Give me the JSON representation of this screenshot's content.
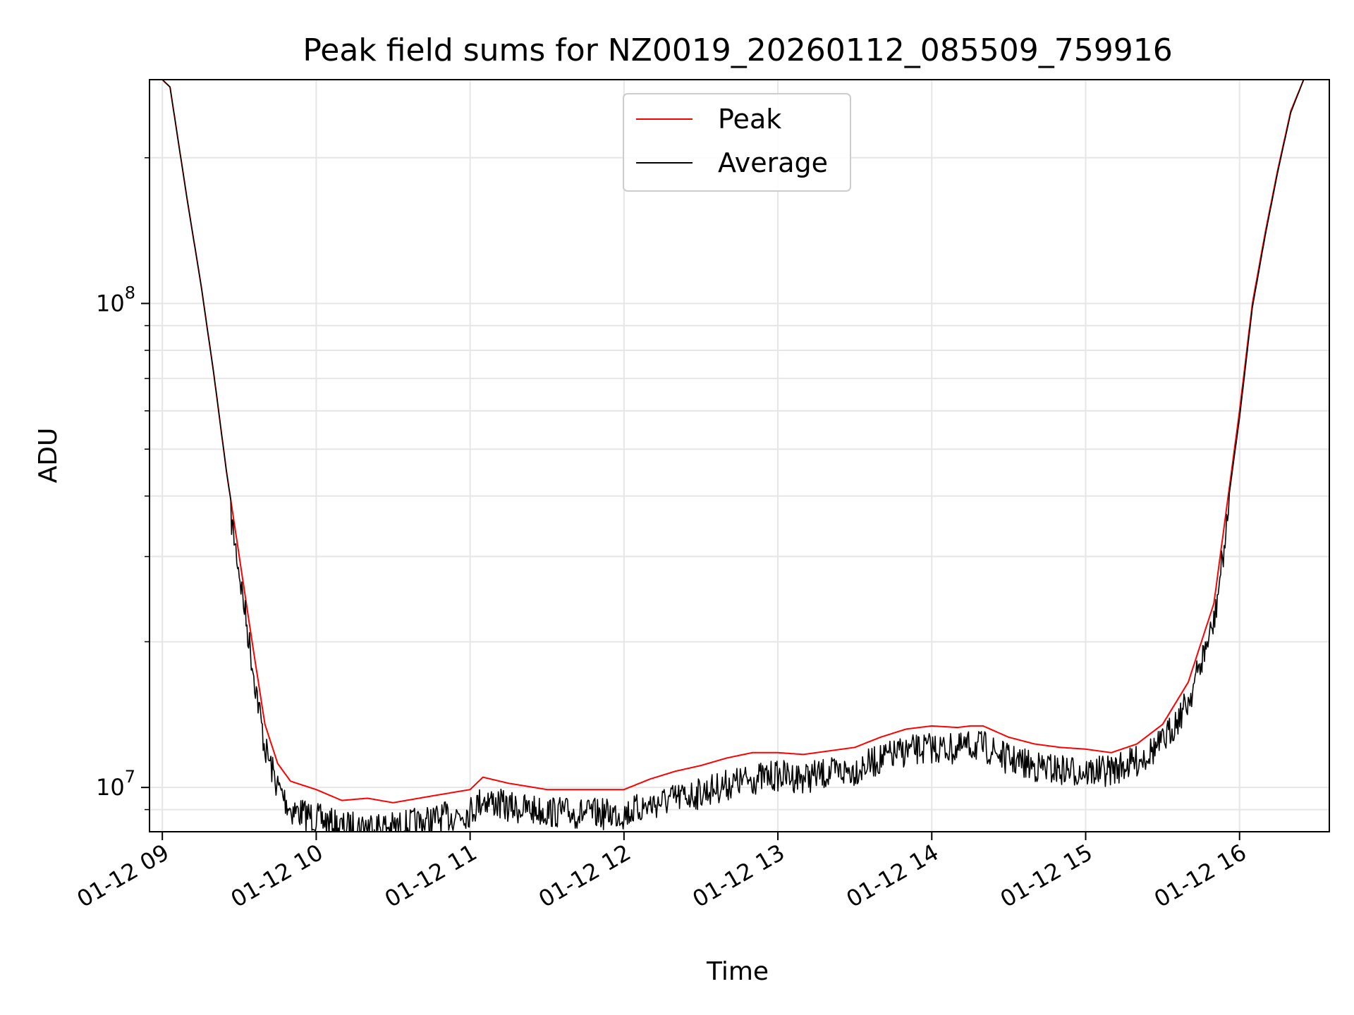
{
  "chart_data": {
    "type": "line",
    "title": "Peak field sums for NZ0019_20260112_085509_759916",
    "xlabel": "Time",
    "ylabel": "ADU",
    "y_scale": "log",
    "grid": true,
    "legend_position": "upper center",
    "xlim": [
      "01-12 08:55",
      "01-12 16:35"
    ],
    "ylim": [
      8100000,
      290000000
    ],
    "x_ticks": [
      "01-12 09",
      "01-12 10",
      "01-12 11",
      "01-12 12",
      "01-12 13",
      "01-12 14",
      "01-12 15",
      "01-12 16"
    ],
    "y_ticks": [
      {
        "value": 10000000,
        "base": "10",
        "exp": "7"
      },
      {
        "value": 100000000,
        "base": "10",
        "exp": "8"
      }
    ],
    "series": [
      {
        "name": "Peak",
        "color": "#ff0000",
        "x": [
          "01-12 08:55",
          "01-12 09:00",
          "01-12 09:03",
          "01-12 09:06",
          "01-12 09:10",
          "01-12 09:15",
          "01-12 09:20",
          "01-12 09:25",
          "01-12 09:30",
          "01-12 09:35",
          "01-12 09:40",
          "01-12 09:45",
          "01-12 09:50",
          "01-12 10:00",
          "01-12 10:10",
          "01-12 10:20",
          "01-12 10:30",
          "01-12 10:45",
          "01-12 11:00",
          "01-12 11:05",
          "01-12 11:15",
          "01-12 11:30",
          "01-12 11:45",
          "01-12 12:00",
          "01-12 12:10",
          "01-12 12:20",
          "01-12 12:30",
          "01-12 12:40",
          "01-12 12:50",
          "01-12 13:00",
          "01-12 13:10",
          "01-12 13:20",
          "01-12 13:30",
          "01-12 13:40",
          "01-12 13:50",
          "01-12 14:00",
          "01-12 14:10",
          "01-12 14:15",
          "01-12 14:20",
          "01-12 14:30",
          "01-12 14:40",
          "01-12 14:50",
          "01-12 15:00",
          "01-12 15:05",
          "01-12 15:10",
          "01-12 15:20",
          "01-12 15:30",
          "01-12 15:40",
          "01-12 15:50",
          "01-12 16:00",
          "01-12 16:05",
          "01-12 16:10",
          "01-12 16:15",
          "01-12 16:20",
          "01-12 16:25",
          "01-12 16:30",
          "01-12 16:35"
        ],
        "values": [
          290000000,
          290000000,
          280000000,
          220000000,
          160000000,
          110000000,
          72000000,
          45000000,
          30000000,
          20000000,
          13500000,
          11200000,
          10300000,
          9900000,
          9400000,
          9500000,
          9300000,
          9600000,
          9900000,
          10500000,
          10200000,
          9900000,
          9900000,
          9900000,
          10400000,
          10800000,
          11100000,
          11500000,
          11800000,
          11800000,
          11700000,
          11900000,
          12100000,
          12700000,
          13200000,
          13400000,
          13300000,
          13400000,
          13400000,
          12700000,
          12300000,
          12100000,
          12000000,
          11900000,
          11800000,
          12300000,
          13500000,
          16500000,
          24000000,
          60000000,
          100000000,
          140000000,
          190000000,
          250000000,
          290000000,
          290000000,
          290000000
        ]
      },
      {
        "name": "Average",
        "color": "#000000",
        "x": [
          "01-12 08:55",
          "01-12 09:00",
          "01-12 09:03",
          "01-12 09:06",
          "01-12 09:10",
          "01-12 09:15",
          "01-12 09:20",
          "01-12 09:25",
          "01-12 09:30",
          "01-12 09:35",
          "01-12 09:40",
          "01-12 09:45",
          "01-12 09:50",
          "01-12 10:00",
          "01-12 10:10",
          "01-12 10:20",
          "01-12 10:30",
          "01-12 10:45",
          "01-12 11:00",
          "01-12 11:05",
          "01-12 11:15",
          "01-12 11:30",
          "01-12 11:45",
          "01-12 12:00",
          "01-12 12:10",
          "01-12 12:20",
          "01-12 12:30",
          "01-12 12:40",
          "01-12 12:50",
          "01-12 13:00",
          "01-12 13:10",
          "01-12 13:20",
          "01-12 13:30",
          "01-12 13:40",
          "01-12 13:50",
          "01-12 14:00",
          "01-12 14:10",
          "01-12 14:15",
          "01-12 14:20",
          "01-12 14:30",
          "01-12 14:40",
          "01-12 14:50",
          "01-12 15:00",
          "01-12 15:05",
          "01-12 15:10",
          "01-12 15:20",
          "01-12 15:30",
          "01-12 15:40",
          "01-12 15:50",
          "01-12 16:00",
          "01-12 16:05",
          "01-12 16:10",
          "01-12 16:15",
          "01-12 16:20",
          "01-12 16:25",
          "01-12 16:30",
          "01-12 16:35"
        ],
        "values": [
          290000000,
          290000000,
          280000000,
          220000000,
          160000000,
          110000000,
          72000000,
          45000000,
          30000000,
          19500000,
          13000000,
          10800000,
          9700000,
          9300000,
          8900000,
          9000000,
          8900000,
          9200000,
          9600000,
          10200000,
          9800000,
          9600000,
          9500000,
          9500000,
          9900000,
          10200000,
          10500000,
          10900000,
          11200000,
          11400000,
          11300000,
          11500000,
          11700000,
          12300000,
          12800000,
          13000000,
          12900000,
          13100000,
          13100000,
          12300000,
          11900000,
          11700000,
          11600000,
          11600000,
          11700000,
          12200000,
          13300000,
          16200000,
          23500000,
          58000000,
          98000000,
          138000000,
          188000000,
          248000000,
          290000000,
          290000000,
          290000000
        ],
        "noise_fraction": 0.14
      }
    ]
  }
}
